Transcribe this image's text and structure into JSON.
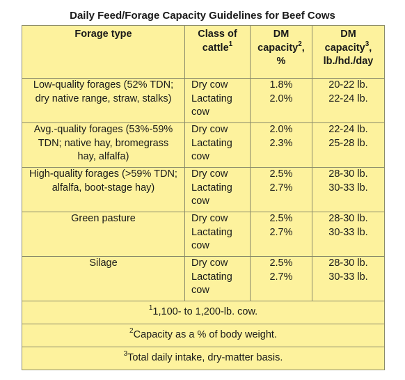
{
  "title": "Daily Feed/Forage Capacity Guidelines for Beef Cows",
  "headers": {
    "forage_type": "Forage type",
    "class_line1": "Class of",
    "class_line2": "cattle",
    "class_sup": "1",
    "dm1_line1": "DM",
    "dm1_line2": "capacity",
    "dm1_sup": "2",
    "dm1_line2_suffix": ",",
    "dm1_line3": "%",
    "dm2_line1": "DM",
    "dm2_line2": "capacity",
    "dm2_sup": "3",
    "dm2_line2_suffix": ",",
    "dm2_line3": "lb./hd./day"
  },
  "rows": [
    {
      "forage": [
        "Low-quality forages (52% TDN;",
        "dry native range, straw, stalks)"
      ],
      "cattle": [
        "Dry cow",
        "Lactating",
        "cow"
      ],
      "dm_pct": [
        "1.8%",
        "2.0%"
      ],
      "dm_lb": [
        "20-22 lb.",
        "22-24 lb."
      ]
    },
    {
      "forage": [
        "Avg.-quality forages (53%-59%",
        "TDN; native hay, bromegrass",
        "hay, alfalfa)"
      ],
      "cattle": [
        "Dry cow",
        "Lactating",
        "cow"
      ],
      "dm_pct": [
        "2.0%",
        "2.3%"
      ],
      "dm_lb": [
        "22-24 lb.",
        "25-28 lb."
      ]
    },
    {
      "forage": [
        "High-quality forages (>59% TDN;",
        "alfalfa, boot-stage hay)"
      ],
      "cattle": [
        "Dry cow",
        "Lactating",
        "cow"
      ],
      "dm_pct": [
        "2.5%",
        "2.7%"
      ],
      "dm_lb": [
        "28-30 lb.",
        "30-33 lb."
      ]
    },
    {
      "forage": [
        "Green pasture"
      ],
      "cattle": [
        "Dry cow",
        "Lactating",
        "cow"
      ],
      "dm_pct": [
        "2.5%",
        "2.7%"
      ],
      "dm_lb": [
        "28-30 lb.",
        "30-33 lb."
      ]
    },
    {
      "forage": [
        "Silage"
      ],
      "cattle": [
        "Dry cow",
        "Lactating",
        "cow"
      ],
      "dm_pct": [
        "2.5%",
        "2.7%"
      ],
      "dm_lb": [
        "28-30 lb.",
        "30-33 lb."
      ]
    }
  ],
  "footnotes": [
    {
      "sup": "1",
      "text": "1,100- to 1,200-lb. cow."
    },
    {
      "sup": "2",
      "text": "Capacity as a % of body weight."
    },
    {
      "sup": "3",
      "text": "Total daily intake, dry-matter basis."
    }
  ],
  "colors": {
    "table_fill": "#fdf29d",
    "border": "#8a8a6a"
  }
}
